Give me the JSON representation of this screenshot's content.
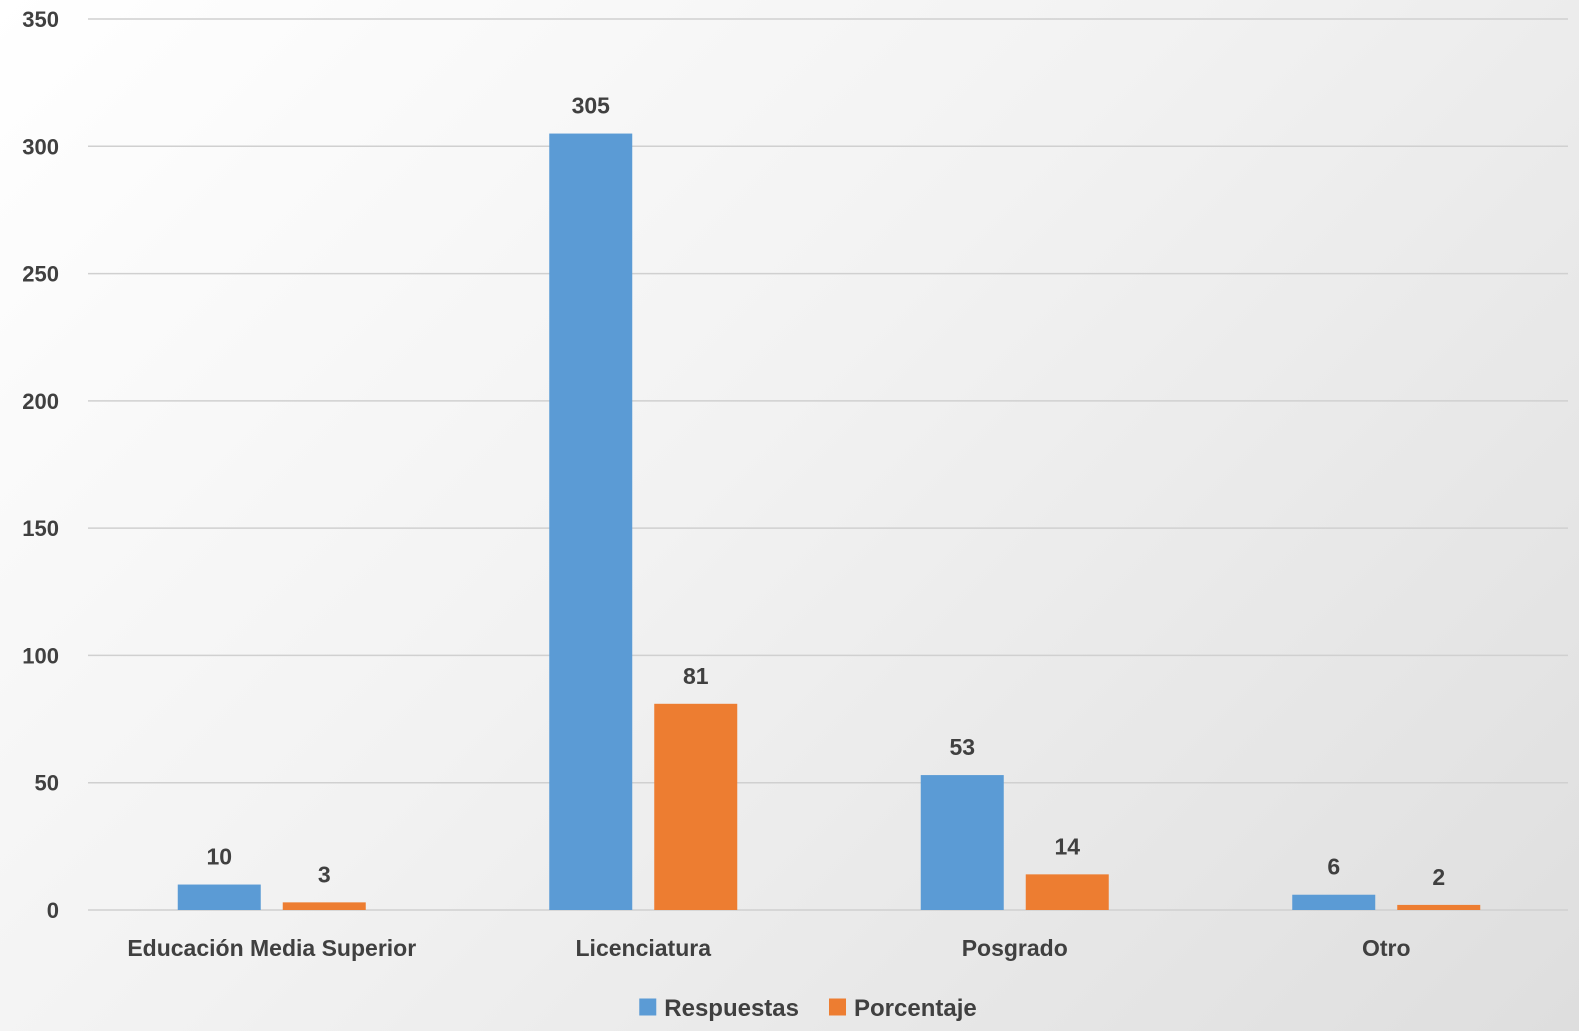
{
  "chart_data": {
    "type": "bar",
    "title": "",
    "xlabel": "",
    "ylabel": "",
    "categories": [
      "Educación Media Superior",
      "Licenciatura",
      "Posgrado",
      "Otro"
    ],
    "series": [
      {
        "name": "Respuestas",
        "values": [
          10,
          305,
          53,
          6
        ],
        "color": "#5B9BD5"
      },
      {
        "name": "Porcentaje",
        "values": [
          3,
          81,
          14,
          2
        ],
        "color": "#ED7D31"
      }
    ],
    "ylim": [
      0,
      350
    ],
    "yticks": [
      0,
      50,
      100,
      150,
      200,
      250,
      300,
      350
    ],
    "grid": true,
    "legend": "bottom-center",
    "data_labels": true
  }
}
